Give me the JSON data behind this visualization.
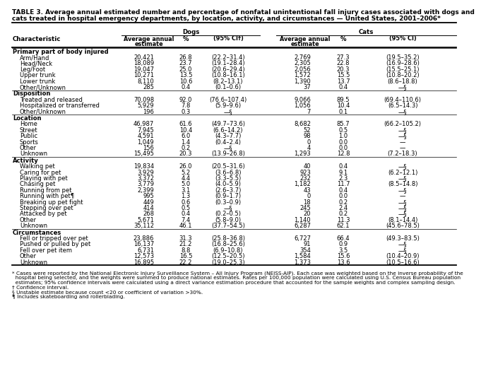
{
  "title_line1": "TABLE 3. Average annual estimated number and percentage of nonfatal unintentional fall injury cases associated with dogs and",
  "title_line2": "cats treated in hospital emergency departments, by location, activity, and circumstances — United States, 2001–2006*",
  "sections": [
    {
      "name": "Primary part of body injured",
      "rows": [
        [
          "Arm/Hand",
          "20,421",
          "26.8",
          "(22.2–31.4)",
          "2,769",
          "27.3",
          "(19.5–35.2)"
        ],
        [
          "Head/Neck",
          "18,089",
          "23.7",
          "(19.1–28.4)",
          "2,305",
          "22.8",
          "(16.9–28.6)"
        ],
        [
          "Leg/Foot",
          "19,047",
          "25.0",
          "(20.6–29.4)",
          "2,056",
          "20.3",
          "(15.5–25.1)"
        ],
        [
          "Upper trunk",
          "10,271",
          "13.5",
          "(10.8–16.1)",
          "1,572",
          "15.5",
          "(10.8–20.2)"
        ],
        [
          "Lower trunk",
          "8,110",
          "10.6",
          "(8.2–13.1)",
          "1,390",
          "13.7",
          "(8.6–18.8)"
        ],
        [
          "Other/Unknown",
          "285",
          "0.4",
          "(0.1–0.6)",
          "37",
          "0.4",
          "—§"
        ]
      ]
    },
    {
      "name": "Disposition",
      "rows": [
        [
          "Treated and released",
          "70,098",
          "92.0",
          "(76.6–107.4)",
          "9,066",
          "89.5",
          "(69.4–110.6)"
        ],
        [
          "Hospitalized or transferred",
          "5,929",
          "7.8",
          "(5.9–9.6)",
          "1,056",
          "10.4",
          "(6.5–14.3)"
        ],
        [
          "Other/Unknown",
          "196",
          "0.3",
          "—§",
          "7",
          "0.1",
          "—§"
        ]
      ]
    },
    {
      "name": "Location",
      "rows": [
        [
          "Home",
          "46,987",
          "61.6",
          "(49.7–73.6)",
          "8,682",
          "85.7",
          "(66.2–105.2)"
        ],
        [
          "Street",
          "7,945",
          "10.4",
          "(6.6–14.2)",
          "52",
          "0.5",
          "—§"
        ],
        [
          "Public",
          "4,591",
          "6.0",
          "(4.3–7.7)",
          "98",
          "1.0",
          "—§"
        ],
        [
          "Sports",
          "1,049",
          "1.4",
          "(0.4–2.4)",
          "0",
          "0.0",
          "—"
        ],
        [
          "Other",
          "156",
          "0.2",
          "—§",
          "4",
          "0.0",
          "—"
        ],
        [
          "Unknown",
          "15,495",
          "20.3",
          "(13.9–26.8)",
          "1,293",
          "12.8",
          "(7.2–18.3)"
        ]
      ]
    },
    {
      "name": "Activity",
      "rows": [
        [
          "Walking pet",
          "19,834",
          "26.0",
          "(20.5–31.6)",
          "40",
          "0.4",
          "—§"
        ],
        [
          "Caring for pet",
          "3,929",
          "5.2",
          "(3.6–6.8)",
          "923",
          "9.1",
          "(6.2–12.1)"
        ],
        [
          "Playing with pet",
          "3,372",
          "4.4",
          "(3.3–5.5)",
          "232",
          "2.3",
          "—§"
        ],
        [
          "Chasing pet",
          "3,779",
          "5.0",
          "(4.0–5.9)",
          "1,182",
          "11.7",
          "(8.5–14.8)"
        ],
        [
          "Running from pet",
          "2,399",
          "3.1",
          "(2.6–3.7)",
          "43",
          "0.4",
          "—§"
        ],
        [
          "Running with pet¶",
          "995",
          "1.3",
          "(0.9–1.7)",
          "0",
          "0.0",
          "—"
        ],
        [
          "Breaking up pet fight",
          "449",
          "0.6",
          "(0.3–0.9)",
          "18",
          "0.2",
          "—§"
        ],
        [
          "Stepping over pet",
          "414",
          "0.5",
          "—§",
          "245",
          "2.4",
          "—§"
        ],
        [
          "Attacked by pet",
          "268",
          "0.4",
          "(0.2–0.5)",
          "20",
          "0.2",
          "—§"
        ],
        [
          "Other",
          "5,671",
          "7.4",
          "(5.8–9.0)",
          "1,140",
          "11.3",
          "(8.1–14.4)"
        ],
        [
          "Unknown",
          "35,112",
          "46.1",
          "(37.7–54.5)",
          "6,287",
          "62.1",
          "(45.6–78.5)"
        ]
      ]
    },
    {
      "name": "Circumstances",
      "rows": [
        [
          "Fell or tripped over pet",
          "23,886",
          "31.3",
          "(25.8–36.8)",
          "6,727",
          "66.4",
          "(49.3–83.5)"
        ],
        [
          "Pushed or pulled by pet",
          "16,137",
          "21.2",
          "(16.8–25.6)",
          "91",
          "0.9",
          "—§"
        ],
        [
          "Fell over pet item",
          "6,731",
          "8.8",
          "(6.9–10.8)",
          "354",
          "3.5",
          "—§"
        ],
        [
          "Other",
          "12,573",
          "16.5",
          "(12.5–20.5)",
          "1,584",
          "15.6",
          "(10.4–20.9)"
        ],
        [
          "Unknown",
          "16,895",
          "22.2",
          "(19.0–25.3)",
          "1,373",
          "13.6",
          "(10.5–16.6)"
        ]
      ]
    }
  ],
  "footnotes": [
    "* Cases were reported by the National Electronic Injury Surveillance System – All Injury Program (NEISS-AIP). Each case was weighted based on the inverse probability of the",
    "  hospital being selected, and the weights were summed to produce national estimates. Rates per 100,000 population were calculated using U.S. Census Bureau population",
    "  estimates; 95% confidence intervals were calculated using a direct variance estimation procedure that accounted for the sample weights and complex sampling design.",
    "† Confidence interval.",
    "§ Unstable estimate because count <20 or coefficient of variation >30%.",
    "¶ Includes skateboarding and rollerblading."
  ],
  "bg_color": "#FFFFFF",
  "text_color": "#000000"
}
